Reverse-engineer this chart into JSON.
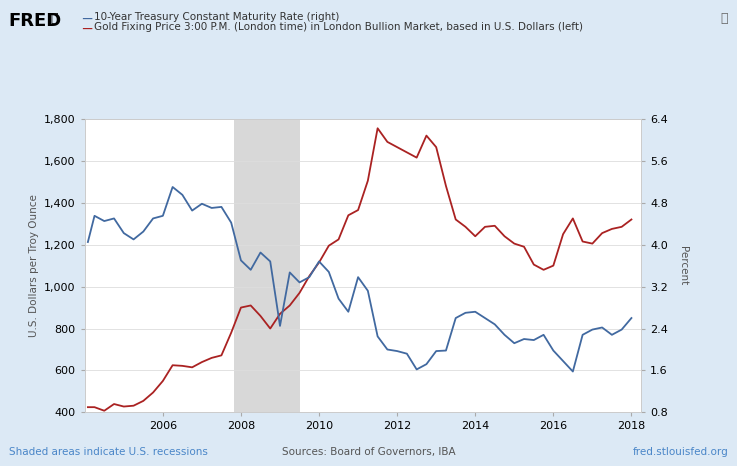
{
  "title_line1": "10-Year Treasury Constant Maturity Rate (right)",
  "title_line2": "Gold Fixing Price 3:00 P.M. (London time) in London Bullion Market, based in U.S. Dollars (left)",
  "ylabel_left": "U.S. Dollars per Troy Ounce",
  "ylabel_right": "Percent",
  "xlabel_bottom": "Sources: Board of Governors, IBA",
  "xlabel_right": "fred.stlouisfed.org",
  "xlabel_left": "Shaded areas indicate U.S. recessions",
  "ylim_left": [
    400,
    1800
  ],
  "ylim_right": [
    0.8,
    6.4
  ],
  "yticks_left": [
    400,
    600,
    800,
    1000,
    1200,
    1400,
    1600,
    1800
  ],
  "yticks_right": [
    0.8,
    1.6,
    2.4,
    3.2,
    4.0,
    4.8,
    5.6,
    6.4
  ],
  "recession_start": 2007.83,
  "recession_end": 2009.5,
  "bg_color": "#dce9f5",
  "plot_bg_color": "#ffffff",
  "gold_color": "#aa2222",
  "treasury_color": "#4169a0",
  "annotation_color": "#4a86c8",
  "recession_color": "#d8d8d8",
  "gold_data": {
    "dates": [
      2004.08,
      2004.25,
      2004.5,
      2004.75,
      2005.0,
      2005.25,
      2005.5,
      2005.75,
      2006.0,
      2006.25,
      2006.5,
      2006.75,
      2007.0,
      2007.25,
      2007.5,
      2007.75,
      2008.0,
      2008.25,
      2008.5,
      2008.75,
      2009.0,
      2009.25,
      2009.5,
      2009.75,
      2010.0,
      2010.25,
      2010.5,
      2010.75,
      2011.0,
      2011.25,
      2011.5,
      2011.75,
      2012.0,
      2012.25,
      2012.5,
      2012.75,
      2013.0,
      2013.25,
      2013.5,
      2013.75,
      2014.0,
      2014.25,
      2014.5,
      2014.75,
      2015.0,
      2015.25,
      2015.5,
      2015.75,
      2016.0,
      2016.25,
      2016.5,
      2016.75,
      2017.0,
      2017.25,
      2017.5,
      2017.75,
      2018.0
    ],
    "values": [
      425,
      425,
      408,
      440,
      428,
      432,
      455,
      495,
      550,
      625,
      622,
      615,
      640,
      660,
      672,
      780,
      900,
      910,
      860,
      800,
      870,
      910,
      970,
      1050,
      1115,
      1195,
      1225,
      1340,
      1365,
      1505,
      1755,
      1690,
      1665,
      1640,
      1615,
      1720,
      1665,
      1480,
      1320,
      1285,
      1240,
      1285,
      1290,
      1240,
      1205,
      1190,
      1105,
      1080,
      1100,
      1250,
      1325,
      1215,
      1205,
      1255,
      1275,
      1285,
      1320
    ]
  },
  "treasury_data": {
    "dates": [
      2004.08,
      2004.25,
      2004.5,
      2004.75,
      2005.0,
      2005.25,
      2005.5,
      2005.75,
      2006.0,
      2006.25,
      2006.5,
      2006.75,
      2007.0,
      2007.25,
      2007.5,
      2007.75,
      2008.0,
      2008.25,
      2008.5,
      2008.75,
      2009.0,
      2009.25,
      2009.5,
      2009.75,
      2010.0,
      2010.25,
      2010.5,
      2010.75,
      2011.0,
      2011.25,
      2011.5,
      2011.75,
      2012.0,
      2012.25,
      2012.5,
      2012.75,
      2013.0,
      2013.25,
      2013.5,
      2013.75,
      2014.0,
      2014.25,
      2014.5,
      2014.75,
      2015.0,
      2015.25,
      2015.5,
      2015.75,
      2016.0,
      2016.25,
      2016.5,
      2016.75,
      2017.0,
      2017.25,
      2017.5,
      2017.75,
      2018.0
    ],
    "values": [
      4.05,
      4.55,
      4.45,
      4.5,
      4.22,
      4.1,
      4.25,
      4.5,
      4.55,
      5.1,
      4.95,
      4.65,
      4.78,
      4.7,
      4.72,
      4.42,
      3.7,
      3.52,
      3.85,
      3.68,
      2.45,
      3.47,
      3.28,
      3.38,
      3.68,
      3.48,
      2.97,
      2.72,
      3.38,
      3.12,
      2.25,
      2.0,
      1.97,
      1.92,
      1.62,
      1.72,
      1.97,
      1.98,
      2.6,
      2.7,
      2.72,
      2.6,
      2.48,
      2.28,
      2.12,
      2.2,
      2.18,
      2.28,
      1.98,
      1.78,
      1.58,
      2.28,
      2.38,
      2.42,
      2.28,
      2.38,
      2.6
    ]
  },
  "xlim": [
    2004.0,
    2018.25
  ],
  "xticks": [
    2006,
    2008,
    2010,
    2012,
    2014,
    2016,
    2018
  ]
}
